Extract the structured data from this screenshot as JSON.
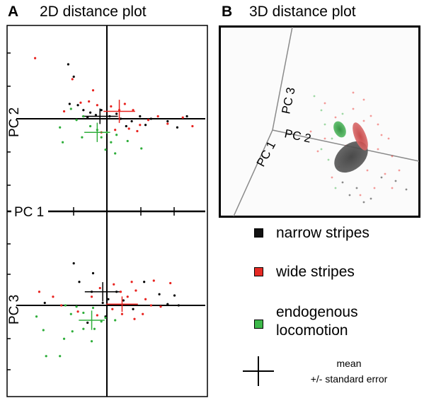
{
  "panels": {
    "a": {
      "letter": "A",
      "title": "2D distance plot"
    },
    "b": {
      "letter": "B",
      "title": "3D distance plot"
    }
  },
  "colors": {
    "narrow": "#000000",
    "wide": "#e8231f",
    "endogenous": "#2fae3b",
    "swatch_narrow": "#111111",
    "swatch_wide": "#e62a24",
    "swatch_endogenous": "#3db84a"
  },
  "legend": {
    "narrow_label": "narrow stripes",
    "wide_label": "wide stripes",
    "endogenous_line1": "endogenous",
    "endogenous_line2": "locomotion",
    "mean_line1": "mean",
    "mean_line2": "+/- standard error"
  },
  "chart_data": [
    {
      "type": "scatter",
      "panel": "A-top",
      "xlabel": "PC 1",
      "ylabel": "PC 2",
      "xlim": [
        -3.5,
        3.5
      ],
      "ylim": [
        -3,
        3
      ],
      "grid": false,
      "series": [
        {
          "name": "narrow stripes",
          "color_key": "narrow",
          "points": [
            [
              -1.4,
              2.2
            ],
            [
              -1.2,
              1.7
            ],
            [
              -1.35,
              0.6
            ],
            [
              -1.05,
              0.55
            ],
            [
              -0.85,
              0.35
            ],
            [
              -0.6,
              0.25
            ],
            [
              -0.4,
              0.15
            ],
            [
              -0.2,
              0.35
            ],
            [
              0.1,
              0.1
            ],
            [
              0.5,
              0.0
            ],
            [
              0.9,
              -0.1
            ],
            [
              1.2,
              0.1
            ],
            [
              1.6,
              0.0
            ],
            [
              2.2,
              -0.1
            ],
            [
              2.55,
              -0.35
            ],
            [
              2.9,
              0.1
            ],
            [
              0.7,
              -0.3
            ],
            [
              -0.7,
              0.05
            ],
            [
              1.4,
              -0.25
            ],
            [
              0.35,
              0.2
            ]
          ],
          "mean": [
            -0.25,
            0.1
          ],
          "se": [
            0.25,
            0.12
          ]
        },
        {
          "name": "wide stripes",
          "color_key": "wide",
          "points": [
            [
              -2.6,
              2.45
            ],
            [
              -1.25,
              1.6
            ],
            [
              -0.5,
              1.15
            ],
            [
              -1.55,
              0.3
            ],
            [
              -0.95,
              0.65
            ],
            [
              -0.65,
              0.7
            ],
            [
              -0.35,
              0.55
            ],
            [
              0.15,
              0.5
            ],
            [
              0.45,
              0.35
            ],
            [
              0.65,
              0.6
            ],
            [
              0.95,
              0.35
            ],
            [
              1.2,
              -0.25
            ],
            [
              1.5,
              -0.05
            ],
            [
              1.85,
              0.1
            ],
            [
              2.2,
              -0.2
            ],
            [
              2.75,
              0.05
            ],
            [
              3.1,
              -0.3
            ],
            [
              0.3,
              -0.45
            ],
            [
              0.8,
              -0.4
            ],
            [
              1.1,
              -0.5
            ],
            [
              -0.2,
              -0.55
            ]
          ],
          "mean": [
            0.45,
            0.3
          ],
          "se": [
            0.22,
            0.18
          ]
        },
        {
          "name": "endogenous locomotion",
          "color_key": "endogenous",
          "points": [
            [
              -1.3,
              0.4
            ],
            [
              -1.1,
              -0.05
            ],
            [
              -0.85,
              0.1
            ],
            [
              -1.7,
              -0.35
            ],
            [
              -0.6,
              -0.3
            ],
            [
              -0.35,
              -0.45
            ],
            [
              -0.2,
              -0.75
            ],
            [
              0.0,
              -0.55
            ],
            [
              0.15,
              -0.95
            ],
            [
              0.35,
              -0.65
            ],
            [
              -1.6,
              -0.95
            ],
            [
              -0.9,
              -0.75
            ],
            [
              0.75,
              -0.9
            ],
            [
              1.25,
              -1.2
            ],
            [
              -0.05,
              -1.25
            ],
            [
              0.3,
              -1.4
            ]
          ],
          "mean": [
            -0.35,
            -0.55
          ],
          "se": [
            0.18,
            0.15
          ]
        }
      ]
    },
    {
      "type": "scatter",
      "panel": "A-bottom",
      "xlabel": "PC 1",
      "ylabel": "PC 3",
      "xlim": [
        -3.5,
        3.5
      ],
      "ylim": [
        -3,
        3
      ],
      "grid": false,
      "series": [
        {
          "name": "narrow stripes",
          "color_key": "narrow",
          "points": [
            [
              -2.25,
              0.1
            ],
            [
              -1.2,
              1.7
            ],
            [
              -0.5,
              1.3
            ],
            [
              -1.0,
              0.95
            ],
            [
              -0.55,
              0.55
            ],
            [
              -0.15,
              0.1
            ],
            [
              0.05,
              0.25
            ],
            [
              0.35,
              0.55
            ],
            [
              0.6,
              0.2
            ],
            [
              0.95,
              -0.15
            ],
            [
              1.35,
              0.95
            ],
            [
              1.9,
              0.45
            ],
            [
              2.45,
              0.4
            ],
            [
              2.2,
              0.05
            ],
            [
              2.6,
              0.0
            ],
            [
              -0.05,
              -0.45
            ],
            [
              -0.7,
              -0.7
            ]
          ],
          "mean": [
            -0.15,
            0.55
          ],
          "se": [
            0.25,
            0.15
          ]
        },
        {
          "name": "wide stripes",
          "color_key": "wide",
          "points": [
            [
              -2.45,
              0.55
            ],
            [
              -1.95,
              0.35
            ],
            [
              -1.65,
              0.0
            ],
            [
              -0.55,
              0.35
            ],
            [
              -0.25,
              0.7
            ],
            [
              0.25,
              0.85
            ],
            [
              0.5,
              0.55
            ],
            [
              0.75,
              0.35
            ],
            [
              1.05,
              0.6
            ],
            [
              1.4,
              0.25
            ],
            [
              1.6,
              0.0
            ],
            [
              1.95,
              -0.05
            ],
            [
              1.3,
              -0.35
            ],
            [
              1.0,
              -0.55
            ],
            [
              0.55,
              -0.35
            ],
            [
              0.2,
              -0.15
            ],
            [
              -0.35,
              -0.4
            ],
            [
              2.3,
              0.9
            ],
            [
              1.7,
              1.0
            ],
            [
              0.9,
              0.95
            ],
            [
              -1.05,
              -0.25
            ]
          ],
          "mean": [
            0.55,
            0.05
          ],
          "se": [
            0.22,
            0.12
          ]
        },
        {
          "name": "endogenous locomotion",
          "color_key": "endogenous",
          "points": [
            [
              -1.5,
              0.0
            ],
            [
              -1.1,
              -0.05
            ],
            [
              -1.3,
              -0.35
            ],
            [
              -0.85,
              -0.3
            ],
            [
              -0.5,
              -0.1
            ],
            [
              -0.2,
              -0.65
            ],
            [
              -0.45,
              -0.95
            ],
            [
              -0.85,
              -0.95
            ],
            [
              -1.25,
              -1.05
            ],
            [
              -0.05,
              -0.5
            ],
            [
              -2.55,
              -0.45
            ],
            [
              -2.3,
              -1.0
            ],
            [
              -1.7,
              -2.05
            ],
            [
              -2.2,
              -2.05
            ],
            [
              -1.55,
              -1.35
            ],
            [
              -0.55,
              -1.45
            ],
            [
              0.3,
              -0.6
            ]
          ],
          "mean": [
            -0.55,
            -0.6
          ],
          "se": [
            0.18,
            0.15
          ]
        }
      ]
    },
    {
      "type": "scatter",
      "panel": "B",
      "axis_labels": [
        "PC 1",
        "PC 2",
        "PC 3"
      ],
      "note": "3D scatter with ellipsoids per group"
    }
  ]
}
